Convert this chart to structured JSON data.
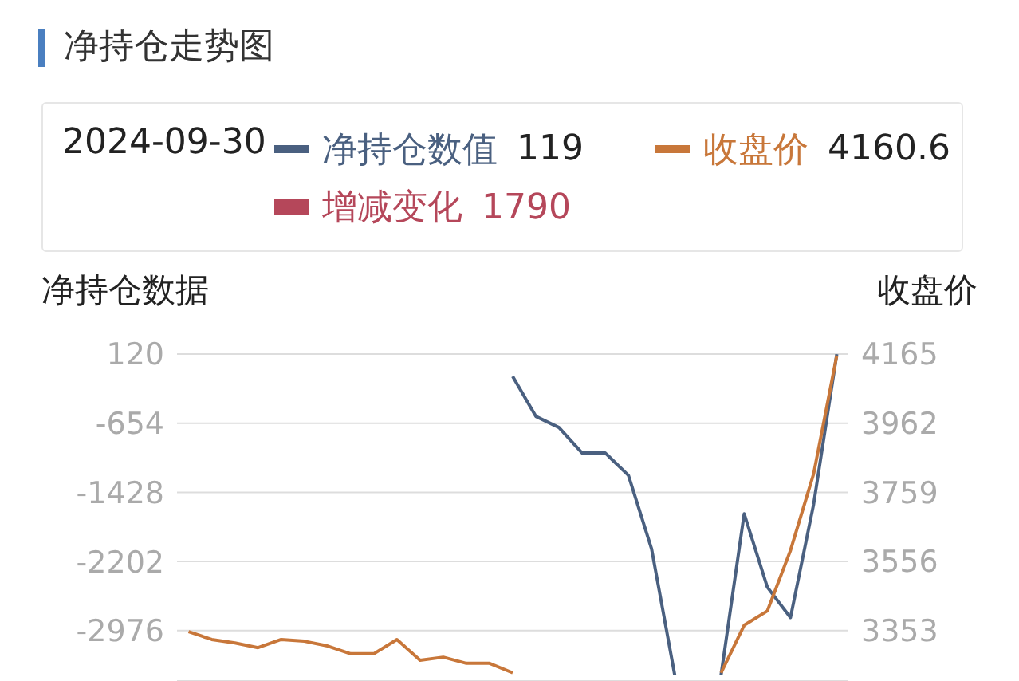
{
  "chart_data": {
    "type": "line",
    "title": "净持仓走势图",
    "ylabel": "净持仓数据",
    "y2label": "收盘价",
    "categories": [
      null,
      null,
      null,
      null,
      null,
      null,
      null,
      null,
      null,
      null,
      null,
      null,
      null,
      null,
      null,
      null,
      null,
      null,
      null,
      null,
      null,
      null,
      null,
      null,
      null,
      null,
      null,
      null,
      null
    ],
    "series": [
      {
        "name": "净持仓数值",
        "color": "#4a6080",
        "values": [
          null,
          null,
          null,
          null,
          null,
          null,
          null,
          null,
          null,
          null,
          null,
          null,
          null,
          null,
          -130,
          -577,
          -702,
          -988,
          -988,
          -1238,
          -2061,
          -3474,
          null,
          -3474,
          -1668,
          -2490,
          -2830,
          -1561,
          119
        ]
      },
      {
        "name": "收盘价",
        "color": "#c8773a",
        "axis": "y2",
        "values": [
          3349,
          3326,
          3316,
          3302,
          3326,
          3321,
          3307,
          3284,
          3284,
          3326,
          3265,
          3274,
          3256,
          3256,
          3228,
          null,
          null,
          null,
          null,
          null,
          null,
          null,
          null,
          3228,
          3368,
          3410,
          3588,
          3813,
          4160.6
        ]
      },
      {
        "name": "增减变化",
        "type": "bar",
        "color": "#b5475a",
        "values": [
          null,
          null,
          null,
          null,
          null,
          null,
          null,
          null,
          null,
          null,
          null,
          null,
          null,
          null,
          null,
          null,
          null,
          null,
          null,
          null,
          null,
          null,
          null,
          null,
          null,
          null,
          null,
          null,
          null
        ]
      }
    ],
    "annotations": [
      "2024-09-30",
      "119",
      "4160.6",
      "1790"
    ],
    "ylim": [
      -3540,
      120
    ],
    "yticks": [
      120,
      -654,
      -1428,
      -2202,
      -2976
    ],
    "y2lim": [
      3204,
      4165
    ],
    "y2ticks": [
      4165,
      3962,
      3759,
      3556,
      3353
    ],
    "grid": "y",
    "legend": "top",
    "tick_labels": "y",
    "marker": "none",
    "line_style": "solid"
  }
}
